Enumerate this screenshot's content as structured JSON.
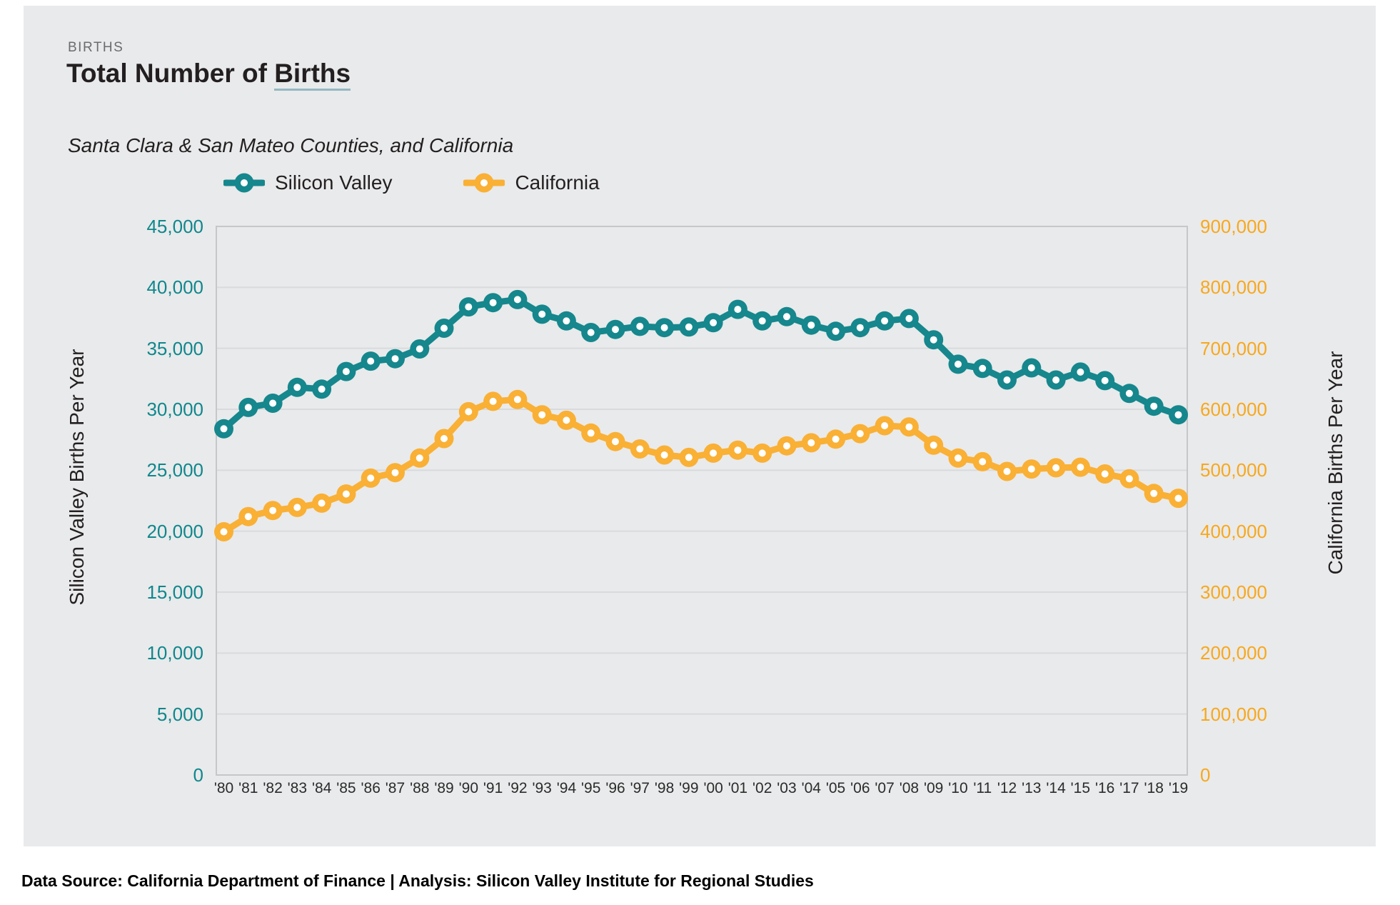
{
  "header": {
    "kicker": "BIRTHS",
    "title_main": "Total Number of ",
    "title_underlined": "Births",
    "subtitle": "Santa Clara & San Mateo Counties, and California"
  },
  "chart_data": {
    "type": "line",
    "title": "Total Number of Births",
    "subtitle": "Santa Clara & San Mateo Counties, and California",
    "legend_position": "top",
    "grid": true,
    "x": [
      "'80",
      "'81",
      "'82",
      "'83",
      "'84",
      "'85",
      "'86",
      "'87",
      "'88",
      "'89",
      "'90",
      "'91",
      "'92",
      "'93",
      "'94",
      "'95",
      "'96",
      "'97",
      "'98",
      "'99",
      "'00",
      "'01",
      "'02",
      "'03",
      "'04",
      "'05",
      "'06",
      "'07",
      "'08",
      "'09",
      "'10",
      "'11",
      "'12",
      "'13",
      "'14",
      "'15",
      "'16",
      "'17",
      "'18",
      "'19"
    ],
    "series": [
      {
        "name": "Silicon Valley",
        "axis": "left",
        "color": "#15878D",
        "values": [
          28400,
          30150,
          30500,
          31800,
          31650,
          33100,
          33950,
          34150,
          34950,
          36650,
          38400,
          38750,
          39000,
          37800,
          37250,
          36300,
          36550,
          36800,
          36700,
          36750,
          37100,
          38200,
          37250,
          37600,
          36900,
          36400,
          36700,
          37250,
          37450,
          35700,
          33700,
          33350,
          32400,
          33400,
          32400,
          33050,
          32350,
          31300,
          30250,
          29550
        ]
      },
      {
        "name": "California",
        "axis": "right",
        "color": "#F9B035",
        "values": [
          399000,
          424000,
          434000,
          439000,
          446000,
          461000,
          487000,
          496000,
          520000,
          552000,
          596000,
          613000,
          616000,
          591000,
          582000,
          561000,
          547000,
          535000,
          525000,
          521000,
          528000,
          533000,
          528000,
          540000,
          545000,
          551000,
          560000,
          573000,
          571000,
          541000,
          520000,
          514000,
          498000,
          502000,
          504000,
          505000,
          494000,
          486000,
          462000,
          454000
        ]
      }
    ],
    "ylabel_left": "Silicon Valley Births Per Year",
    "ylabel_right": "California Births Per Year",
    "y_left_max": 45000,
    "y_right_max": 900000,
    "y_left_ticks": [
      "45,000",
      "40,000",
      "35,000",
      "30,000",
      "25,000",
      "20,000",
      "15,000",
      "10,000",
      "5,000",
      "0"
    ],
    "y_right_ticks": [
      "900,000",
      "800,000",
      "700,000",
      "600,000",
      "500,000",
      "400,000",
      "300,000",
      "200,000",
      "100,000",
      "0"
    ]
  },
  "theme": {
    "card_bg": "#e9eaeb",
    "grid_line": "#d9dadc",
    "frame_line": "#c5c7c9",
    "teal_tick": "#0F878D",
    "yellow_tick": "#F7A81E"
  },
  "footer": {
    "text": "Data Source: California Department of Finance | Analysis: Silicon Valley Institute for Regional Studies"
  }
}
